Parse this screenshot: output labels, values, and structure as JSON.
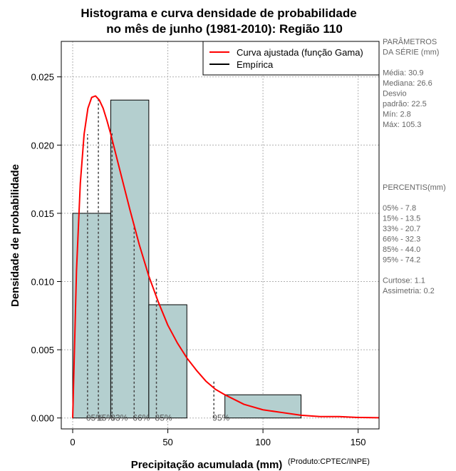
{
  "chart_data": {
    "type": "bar",
    "title_lines": [
      "Histograma e curva densidade de probabilidade",
      "no mês de junho (1981-2010): Região 110"
    ],
    "xlabel": "Precipitação acumulada (mm)",
    "ylabel": "Densidade de probabilidade",
    "credit": "(Produto:CPTEC/INPE)",
    "xlim": [
      -6,
      161
    ],
    "ylim": [
      -0.0008,
      0.0276
    ],
    "xticks": [
      0,
      50,
      100,
      150
    ],
    "yticks": [
      0.0,
      0.005,
      0.01,
      0.015,
      0.02,
      0.025
    ],
    "ytick_labels": [
      "0.000",
      "0.005",
      "0.010",
      "0.015",
      "0.020",
      "0.025"
    ],
    "grid": true,
    "legend_position": "top-right",
    "histogram": {
      "name": "Empírica",
      "bins": [
        {
          "start": 0,
          "end": 20,
          "density": 0.015
        },
        {
          "start": 20,
          "end": 40,
          "density": 0.0233
        },
        {
          "start": 40,
          "end": 60,
          "density": 0.0083
        },
        {
          "start": 60,
          "end": 80,
          "density": 0.0
        },
        {
          "start": 80,
          "end": 120,
          "density": 0.0017
        }
      ]
    },
    "fitted_curve": {
      "name": "Curva ajustada (função Gama)",
      "distribution": "gamma",
      "x": [
        0,
        2,
        4,
        6,
        8,
        10,
        12,
        14,
        16,
        18,
        20,
        22,
        24,
        26,
        28,
        30,
        35,
        40,
        45,
        50,
        55,
        60,
        65,
        70,
        75,
        80,
        90,
        100,
        110,
        120,
        130,
        140,
        150,
        161
      ],
      "y": [
        0.0,
        0.0108,
        0.0172,
        0.0208,
        0.0227,
        0.0235,
        0.0236,
        0.0233,
        0.0227,
        0.0218,
        0.0208,
        0.0197,
        0.0186,
        0.0175,
        0.0164,
        0.0153,
        0.0127,
        0.0104,
        0.0085,
        0.0068,
        0.0055,
        0.0044,
        0.0035,
        0.0027,
        0.0021,
        0.0017,
        0.001,
        0.0006,
        0.0004,
        0.0002,
        0.0001,
        0.0001,
        4e-05,
        2e-05
      ]
    },
    "percentile_markers": [
      {
        "label": "05%",
        "x": 7.8,
        "y": 0.0208
      },
      {
        "label": "15%",
        "x": 13.5,
        "y": 0.0234
      },
      {
        "label": "33%",
        "x": 20.7,
        "y": 0.0209
      },
      {
        "label": "66%",
        "x": 32.3,
        "y": 0.0142
      },
      {
        "label": "85%",
        "x": 44.0,
        "y": 0.0102
      },
      {
        "label": "95%",
        "x": 74.2,
        "y": 0.0027
      }
    ],
    "legend": [
      {
        "label": "Curva ajustada (função Gama)",
        "color": "#ff0000"
      },
      {
        "label": "Empírica",
        "color": "#000000"
      }
    ],
    "colors": {
      "bar_fill": "#b4cfcf",
      "bar_stroke": "#000000",
      "curve": "#ff0000",
      "grid": "#b0b0b0",
      "side_text": "#666666"
    }
  },
  "stats_panel": {
    "lines": [
      "PARÂMETROS",
      " DA SÉRIE (mm)",
      "",
      "Média:  30.9",
      "Mediana:  26.6",
      "Desvio",
      "padrão:  22.5",
      "Mín:  2.8",
      "Máx:  105.3"
    ]
  },
  "percentiles_panel": {
    "lines": [
      " PERCENTIS(mm)",
      "",
      "05% -  7.8",
      "15% -  13.5",
      "33% -  20.7",
      "66% -  32.3",
      "85% -  44.0",
      "95% -  74.2",
      "",
      "Curtose:  1.1",
      "Assimetria:  0.2"
    ]
  }
}
